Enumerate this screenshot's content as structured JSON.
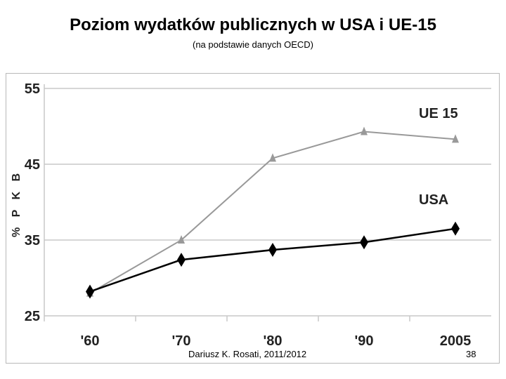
{
  "title": "Poziom wydatków publicznych w USA i UE-15",
  "subtitle": "(na podstawie danych OECD)",
  "footer": {
    "author": "Dariusz K. Rosati, 2011/2012",
    "page_number": "38"
  },
  "chart_data": {
    "type": "line",
    "title": "",
    "xlabel": "",
    "ylabel": "% P K B",
    "categories": [
      "'60",
      "'70",
      "'80",
      "'90",
      "2005"
    ],
    "ylim": [
      25,
      55
    ],
    "yticks": [
      "25",
      "35",
      "45",
      "55"
    ],
    "grid": true,
    "series": [
      {
        "name": "UE 15",
        "values": [
          28,
          35,
          45.8,
          49.3,
          48.3
        ],
        "color": "#999999",
        "marker": "triangle"
      },
      {
        "name": "USA",
        "values": [
          28.2,
          32.4,
          33.7,
          34.7,
          36.5
        ],
        "color": "#000000",
        "marker": "diamond"
      }
    ]
  }
}
